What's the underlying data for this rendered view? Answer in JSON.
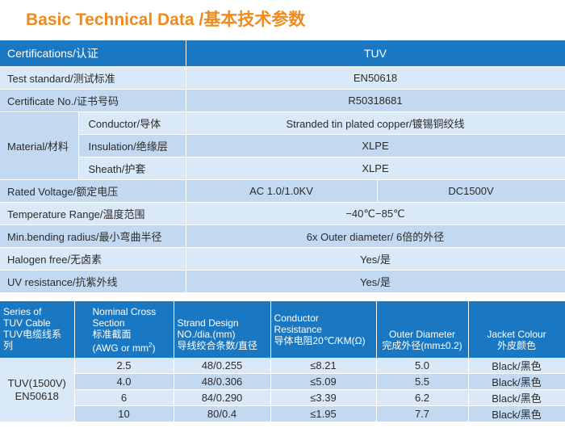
{
  "title": "Basic Technical Data /基本技术参数",
  "spec": {
    "cert_label": "Certifications/认证",
    "cert_value": "TUV",
    "test_standard_label": "Test standard/测试标准",
    "test_standard_value": "EN50618",
    "cert_no_label": "Certificate No./证书号码",
    "cert_no_value": "R50318681",
    "material_label": "Material/材料",
    "conductor_label": "Conductor/导体",
    "conductor_value": "Stranded tin plated copper/镀锡铜绞线",
    "insulation_label": "Insulation/绝缘层",
    "insulation_value": "XLPE",
    "sheath_label": "Sheath/护套",
    "sheath_value": "XLPE",
    "rated_voltage_label": "Rated Voltage/额定电压",
    "rated_voltage_ac": "AC 1.0/1.0KV",
    "rated_voltage_dc": "DC1500V",
    "temp_label": "Temperature Range/温度范围",
    "temp_value": "−40℃−85℃",
    "bend_label": "Min.bending radius/最小弯曲半径",
    "bend_value": "6x Outer diameter/ 6倍的外径",
    "halogen_label": "Halogen free/无卤素",
    "halogen_value": "Yes/是",
    "uv_label": "UV resistance/抗紫外线",
    "uv_value": "Yes/是"
  },
  "product": {
    "headers": {
      "series_l1": "Series of",
      "series_l2": "TUV Cable",
      "series_l3": "TUV电缆线系列",
      "section_l1": "Nominal Cross",
      "section_l2": "Section",
      "section_l3": "标准截面",
      "section_l4a": "(AWG or mm",
      "section_sup": "2",
      "section_l4b": ")",
      "strand_l1": "Strand Design",
      "strand_l2": "NO./dia.(mm)",
      "strand_l3": "导线绞合条数/直径",
      "res_l1": "Conductor",
      "res_l2": "Resistance",
      "res_l3": "导体电阻20℃/KM(Ω)",
      "od_l1": "Outer Diameter",
      "od_l2": "完成外径(mm±0.2)",
      "jacket_l1": "Jacket Colour",
      "jacket_l2": "外皮颜色"
    },
    "series_l1": "TUV(1500V)",
    "series_l2": "EN50618",
    "rows": [
      {
        "section": "2.5",
        "strand": "48/0.255",
        "resistance": "≤8.21",
        "od": "5.0",
        "jacket": "Black/黑色"
      },
      {
        "section": "4.0",
        "strand": "48/0.306",
        "resistance": "≤5.09",
        "od": "5.5",
        "jacket": "Black/黑色"
      },
      {
        "section": "6",
        "strand": "84/0.290",
        "resistance": "≤3.39",
        "od": "6.2",
        "jacket": "Black/黑色"
      },
      {
        "section": "10",
        "strand": "80/0.4",
        "resistance": "≤1.95",
        "od": "7.7",
        "jacket": "Black/黑色"
      }
    ]
  }
}
